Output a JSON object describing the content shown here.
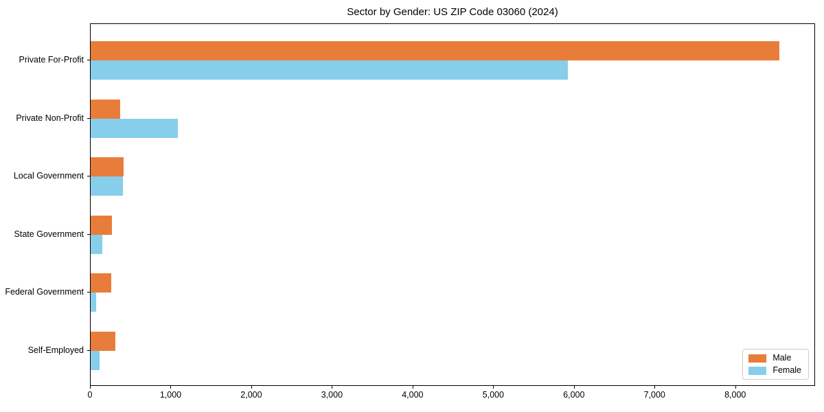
{
  "chart_data": {
    "type": "bar",
    "orientation": "horizontal",
    "title": "Sector by Gender: US ZIP Code 03060 (2024)",
    "categories": [
      "Private For-Profit",
      "Private Non-Profit",
      "Local Government",
      "State Government",
      "Federal Government",
      "Self-Employed"
    ],
    "series": [
      {
        "name": "Male",
        "color": "#e87d3b",
        "values": [
          8540,
          365,
          410,
          265,
          255,
          305
        ]
      },
      {
        "name": "Female",
        "color": "#87ceeb",
        "values": [
          5920,
          1080,
          400,
          145,
          70,
          110
        ]
      }
    ],
    "xlabel": "",
    "ylabel": "",
    "xlim": [
      0,
      8990
    ],
    "x_ticks": [
      0,
      1000,
      2000,
      3000,
      4000,
      5000,
      6000,
      7000,
      8000
    ],
    "x_tick_labels": [
      "0",
      "1,000",
      "2,000",
      "3,000",
      "4,000",
      "5,000",
      "6,000",
      "7,000",
      "8,000"
    ],
    "grid": false,
    "legend_position": "lower right"
  }
}
